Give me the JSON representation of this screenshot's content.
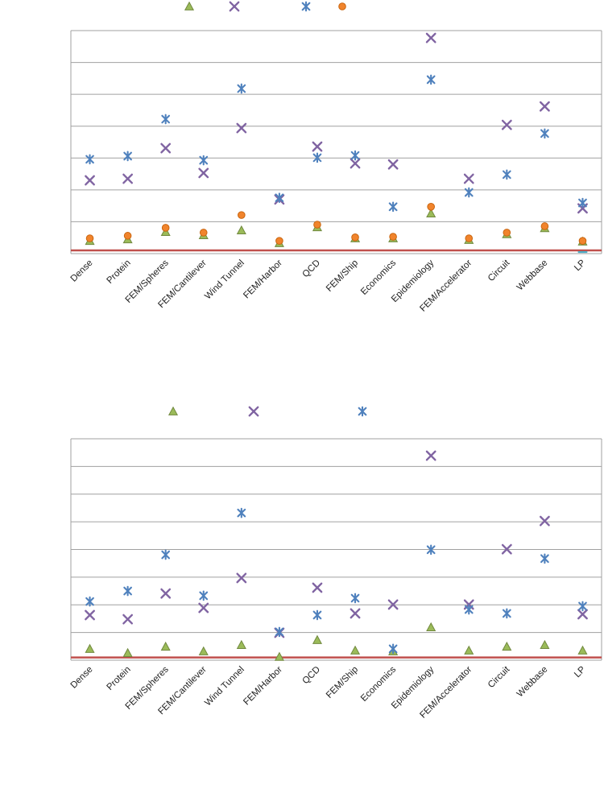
{
  "page": {
    "background": "#ffffff",
    "grid_color": "#a0a0a0",
    "label_color": "#1f1f1f"
  },
  "chart_data": [
    {
      "type": "scatter",
      "categories": [
        "Dense",
        "Protein",
        "FEM/Spheres",
        "FEM/Cantilever",
        "Wind Tunnel",
        "FEM/Harbor",
        "QCD",
        "FEM/Ship",
        "Economics",
        "Epidemiology",
        "FEM/Accelerator",
        "Circuit",
        "Webbase",
        "LP"
      ],
      "ylim": [
        0,
        70
      ],
      "grid_step": 10,
      "grid": true,
      "legend_position": "top",
      "legend_marker_count": 4,
      "baseline": {
        "value": 1,
        "color": "#C0504D"
      },
      "series": [
        {
          "name": "green-triangle",
          "marker": "triangle",
          "color": "#9BBB59",
          "edge": "#71893F",
          "values": [
            4.0,
            4.5,
            6.8,
            5.8,
            7.3,
            3.3,
            8.3,
            4.8,
            4.8,
            12.6,
            4.3,
            6.1,
            8.0,
            3.8
          ]
        },
        {
          "name": "purple-x",
          "marker": "x",
          "color": "#8064A2",
          "edge": "#8064A2",
          "values": [
            23.0,
            23.5,
            33.1,
            25.3,
            39.4,
            17.0,
            33.6,
            28.3,
            28.0,
            67.7,
            23.5,
            40.4,
            46.2,
            14.2
          ]
        },
        {
          "name": "blue-star",
          "marker": "star",
          "color": "#4F81BD",
          "edge": "#4F81BD",
          "values": [
            29.6,
            30.6,
            42.2,
            29.3,
            51.8,
            17.5,
            30.1,
            30.8,
            14.7,
            54.6,
            19.2,
            24.8,
            37.7,
            15.9
          ]
        },
        {
          "name": "orange-circle",
          "marker": "circle",
          "color": "#F1842C",
          "edge": "#C9650F",
          "values": [
            4.8,
            5.6,
            8.1,
            6.6,
            12.1,
            4.0,
            9.1,
            5.1,
            5.3,
            14.7,
            4.8,
            6.6,
            8.6,
            4.0
          ]
        },
        {
          "name": "cyan-dash",
          "marker": "dash",
          "color": "#4BACC6",
          "edge": "#4BACC6",
          "values": [
            null,
            null,
            null,
            null,
            null,
            null,
            null,
            null,
            null,
            null,
            null,
            null,
            null,
            0.5
          ]
        }
      ]
    },
    {
      "type": "scatter",
      "categories": [
        "Dense",
        "Protein",
        "FEM/Spheres",
        "FEM/Cantilever",
        "Wind Tunnel",
        "FEM/Harbor",
        "QCD",
        "FEM/Ship",
        "Economics",
        "Epidemiology",
        "FEM/Accelerator",
        "Circuit",
        "Webbase",
        "LP"
      ],
      "ylim": [
        0,
        80
      ],
      "grid_step": 10,
      "grid": true,
      "legend_position": "top",
      "legend_marker_count": 3,
      "baseline": {
        "value": 1,
        "color": "#C0504D"
      },
      "series": [
        {
          "name": "green-triangle",
          "marker": "triangle",
          "color": "#9BBB59",
          "edge": "#71893F",
          "values": [
            4.1,
            2.6,
            4.9,
            3.2,
            5.5,
            1.2,
            7.3,
            3.5,
            3.2,
            11.9,
            3.5,
            4.9,
            5.5,
            3.5
          ]
        },
        {
          "name": "purple-x",
          "marker": "x",
          "color": "#8064A2",
          "edge": "#8064A2",
          "values": [
            16.3,
            14.8,
            24.1,
            18.9,
            29.7,
            9.9,
            26.2,
            16.9,
            20.1,
            73.9,
            20.1,
            40.1,
            50.3,
            16.6
          ]
        },
        {
          "name": "blue-star",
          "marker": "star",
          "color": "#4F81BD",
          "edge": "#4F81BD",
          "values": [
            21.2,
            25.0,
            38.1,
            23.3,
            53.2,
            10.2,
            16.3,
            22.4,
            4.1,
            39.9,
            18.3,
            16.9,
            36.7,
            19.5
          ]
        }
      ]
    }
  ]
}
